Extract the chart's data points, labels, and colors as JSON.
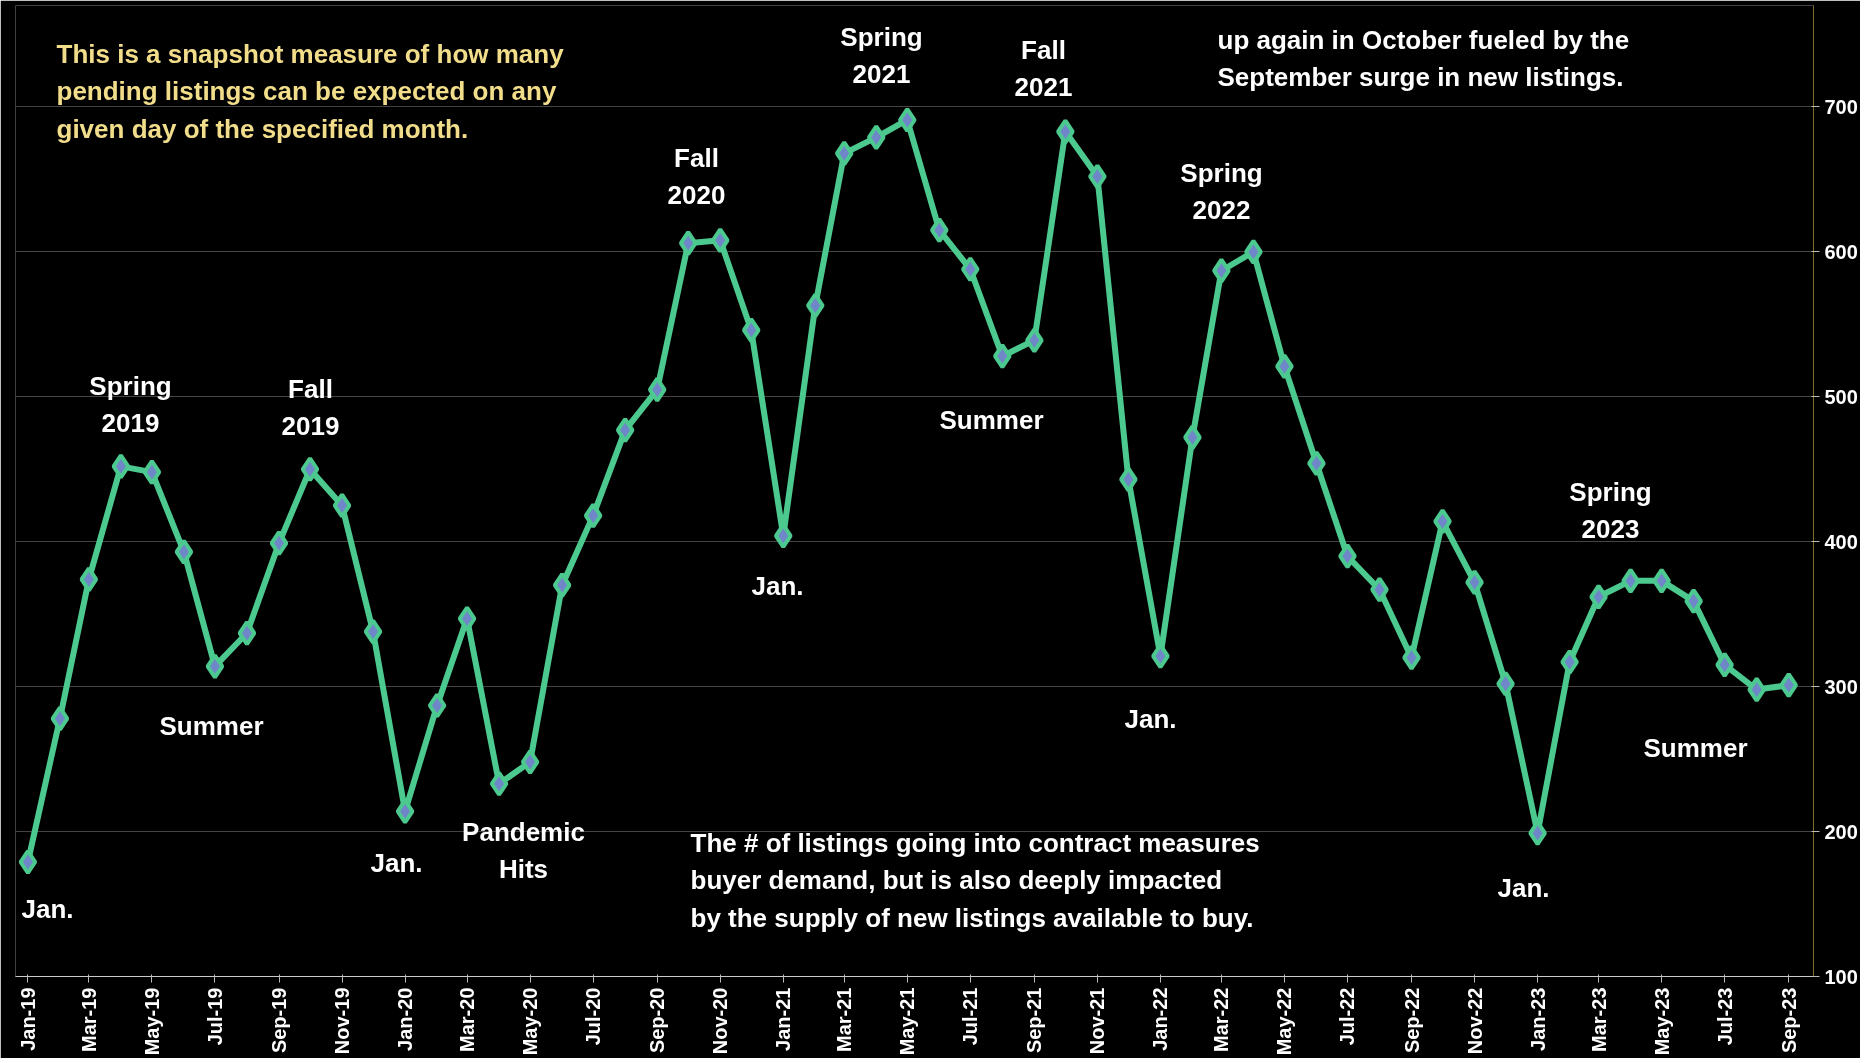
{
  "chart_data": {
    "type": "line",
    "marker": "diamond",
    "line_style": "solid",
    "grid": "y",
    "x": [
      "2019-01",
      "2019-02",
      "2019-03",
      "2019-04",
      "2019-05",
      "2019-06",
      "2019-07",
      "2019-08",
      "2019-09",
      "2019-10",
      "2019-11",
      "2019-12",
      "2020-01",
      "2020-02",
      "2020-03",
      "2020-04",
      "2020-05",
      "2020-06",
      "2020-07",
      "2020-08",
      "2020-09",
      "2020-10",
      "2020-11",
      "2020-12",
      "2021-01",
      "2021-02",
      "2021-03",
      "2021-04",
      "2021-05",
      "2021-06",
      "2021-07",
      "2021-08",
      "2021-09",
      "2021-10",
      "2021-11",
      "2021-12",
      "2022-01",
      "2022-02",
      "2022-03",
      "2022-04",
      "2022-05",
      "2022-06",
      "2022-07",
      "2022-08",
      "2022-09",
      "2022-10",
      "2022-11",
      "2022-12",
      "2023-01",
      "2023-02",
      "2023-03",
      "2023-04",
      "2023-05",
      "2023-06",
      "2023-07",
      "2023-08",
      "2023-09"
    ],
    "series": [
      {
        "color": "#4cc98f",
        "values": [
          179,
          278,
          374,
          452,
          448,
          393,
          314,
          337,
          399,
          450,
          425,
          338,
          214,
          287,
          347,
          233,
          248,
          370,
          418,
          477,
          505,
          606,
          608,
          546,
          404,
          563,
          668,
          679,
          691,
          615,
          588,
          528,
          539,
          683,
          652,
          443,
          321,
          472,
          587,
          600,
          521,
          454,
          390,
          367,
          320,
          414,
          372,
          302,
          199,
          317,
          362,
          373,
          373,
          359,
          315,
          298,
          301
        ]
      }
    ],
    "xlim": [
      "2018-12-20",
      "2023-09-25"
    ],
    "xticks": [
      {
        "value": "2019-01",
        "label": "Jan-19"
      },
      {
        "value": "2019-03",
        "label": "Mar-19"
      },
      {
        "value": "2019-05",
        "label": "May-19"
      },
      {
        "value": "2019-07",
        "label": "Jul-19"
      },
      {
        "value": "2019-09",
        "label": "Sep-19"
      },
      {
        "value": "2019-11",
        "label": "Nov-19"
      },
      {
        "value": "2020-01",
        "label": "Jan-20"
      },
      {
        "value": "2020-03",
        "label": "Mar-20"
      },
      {
        "value": "2020-05",
        "label": "May-20"
      },
      {
        "value": "2020-07",
        "label": "Jul-20"
      },
      {
        "value": "2020-09",
        "label": "Sep-20"
      },
      {
        "value": "2020-11",
        "label": "Nov-20"
      },
      {
        "value": "2021-01",
        "label": "Jan-21"
      },
      {
        "value": "2021-03",
        "label": "Mar-21"
      },
      {
        "value": "2021-05",
        "label": "May-21"
      },
      {
        "value": "2021-07",
        "label": "Jul-21"
      },
      {
        "value": "2021-09",
        "label": "Sep-21"
      },
      {
        "value": "2021-11",
        "label": "Nov-21"
      },
      {
        "value": "2022-01",
        "label": "Jan-22"
      },
      {
        "value": "2022-03",
        "label": "Mar-22"
      },
      {
        "value": "2022-05",
        "label": "May-22"
      },
      {
        "value": "2022-07",
        "label": "Jul-22"
      },
      {
        "value": "2022-09",
        "label": "Sep-22"
      },
      {
        "value": "2022-11",
        "label": "Nov-22"
      },
      {
        "value": "2023-01",
        "label": "Jan-23"
      },
      {
        "value": "2023-03",
        "label": "Mar-23"
      },
      {
        "value": "2023-05",
        "label": "May-23"
      },
      {
        "value": "2023-07",
        "label": "Jul-23"
      },
      {
        "value": "2023-09",
        "label": "Sep-23"
      }
    ],
    "ylim": [
      100,
      770
    ],
    "yticks": [
      100,
      200,
      300,
      400,
      500,
      600,
      700
    ],
    "annotations": [
      "This is a snapshot measure of how many\npending listings can be expected on any\ngiven day of the specified month.",
      "up again in October fueled by the\nSeptember surge in new listings.",
      "The # of listings going into contract measures\nbuyer demand, but is also deeply impacted\nby the supply of new listings available to buy.",
      "Jan.",
      "Spring\n2019",
      "Summer",
      "Fall\n2019",
      "Jan.",
      "Pandemic\nHits",
      "Fall\n2020",
      "Jan.",
      "Spring\n2021",
      "Summer",
      "Fall\n2021",
      "Jan.",
      "Spring\n2022",
      "Jan.",
      "Spring\n2023",
      "Summer"
    ]
  }
}
